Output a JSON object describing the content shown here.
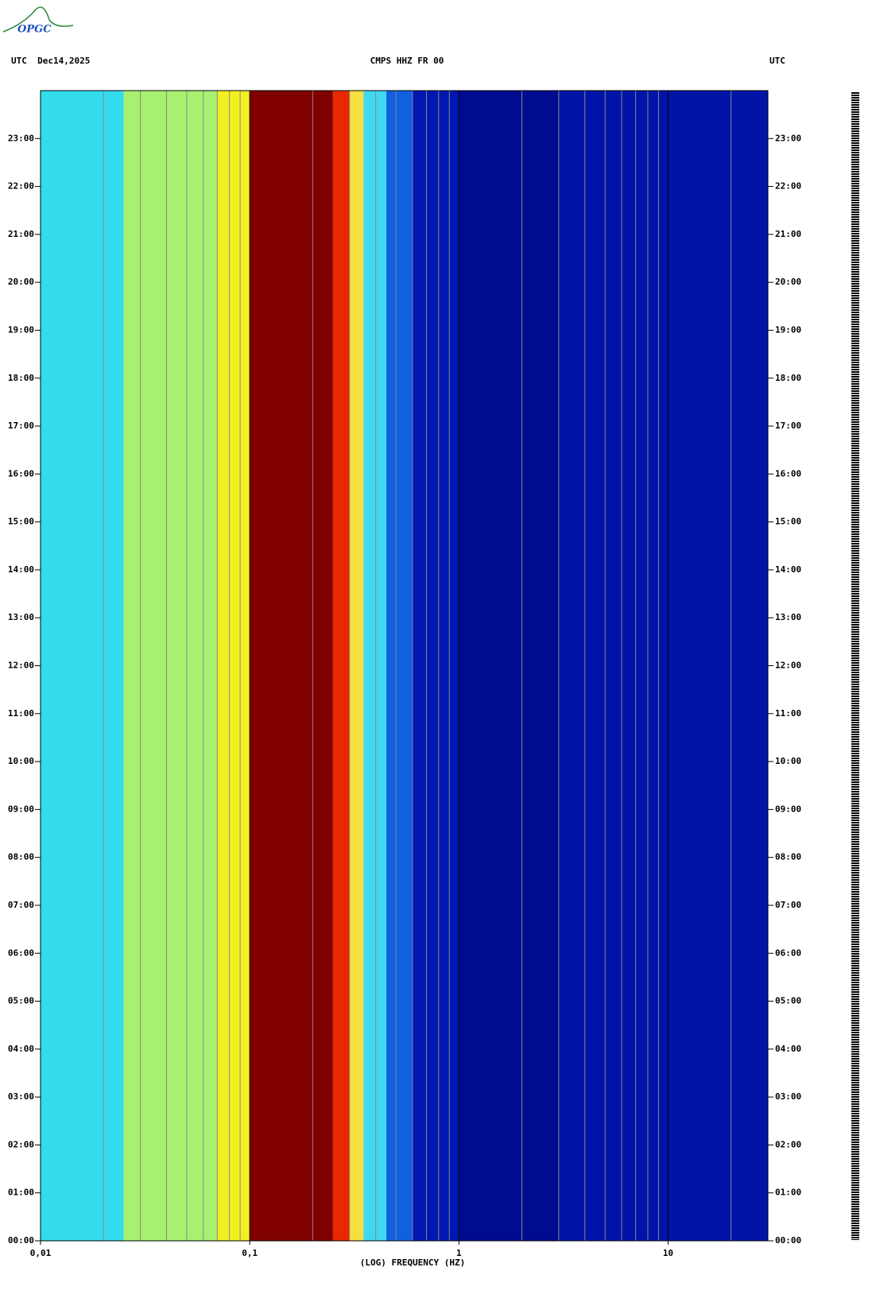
{
  "chart_data": {
    "type": "spectrogram",
    "logo": "OPGC",
    "title_left": "UTC  Dec14,2025",
    "title": "CMPS HHZ FR 00",
    "title_right": "UTC",
    "x_label": "(LOG) FREQUENCY (HZ)",
    "log_x": true,
    "xlim": [
      0.01,
      30
    ],
    "xticks": [
      {
        "value": 0.01,
        "label": "0,01"
      },
      {
        "value": 0.1,
        "label": "0,1"
      },
      1,
      10
    ],
    "x_minor_ticks": [
      0.02,
      0.03,
      0.04,
      0.05,
      0.06,
      0.07,
      0.08,
      0.09,
      0.2,
      0.3,
      0.4,
      0.5,
      0.6,
      0.7,
      0.8,
      0.9,
      2,
      3,
      4,
      5,
      6,
      7,
      8,
      9,
      20
    ],
    "ylim": [
      0,
      24
    ],
    "yticks": [
      {
        "value": 0,
        "label": "00:00"
      },
      {
        "value": 1,
        "label": "01:00"
      },
      {
        "value": 2,
        "label": "02:00"
      },
      {
        "value": 3,
        "label": "03:00"
      },
      {
        "value": 4,
        "label": "04:00"
      },
      {
        "value": 5,
        "label": "05:00"
      },
      {
        "value": 6,
        "label": "06:00"
      },
      {
        "value": 7,
        "label": "07:00"
      },
      {
        "value": 8,
        "label": "08:00"
      },
      {
        "value": 9,
        "label": "09:00"
      },
      {
        "value": 10,
        "label": "10:00"
      },
      {
        "value": 11,
        "label": "11:00"
      },
      {
        "value": 12,
        "label": "12:00"
      },
      {
        "value": 13,
        "label": "13:00"
      },
      {
        "value": 14,
        "label": "14:00"
      },
      {
        "value": 15,
        "label": "15:00"
      },
      {
        "value": 16,
        "label": "16:00"
      },
      {
        "value": 17,
        "label": "17:00"
      },
      {
        "value": 18,
        "label": "18:00"
      },
      {
        "value": 19,
        "label": "19:00"
      },
      {
        "value": 20,
        "label": "20:00"
      },
      {
        "value": 21,
        "label": "21:00"
      },
      {
        "value": 22,
        "label": "22:00"
      },
      {
        "value": 23,
        "label": "23:00"
      }
    ],
    "bands": [
      {
        "from": 0.01,
        "to": 0.025,
        "color": "#33dcec"
      },
      {
        "from": 0.025,
        "to": 0.07,
        "color": "#a8f070"
      },
      {
        "from": 0.07,
        "to": 0.1,
        "color": "#f2f020"
      },
      {
        "from": 0.1,
        "to": 0.25,
        "color": "#800000"
      },
      {
        "from": 0.25,
        "to": 0.3,
        "color": "#e82800"
      },
      {
        "from": 0.3,
        "to": 0.35,
        "color": "#f4e040"
      },
      {
        "from": 0.35,
        "to": 0.45,
        "color": "#40d8f0"
      },
      {
        "from": 0.45,
        "to": 0.6,
        "color": "#1060e0"
      },
      {
        "from": 0.6,
        "to": 1,
        "color": "#0018b0"
      },
      {
        "from": 1,
        "to": 3,
        "color": "#000c90"
      },
      {
        "from": 3,
        "to": 30,
        "color": "#0014a8"
      }
    ]
  }
}
